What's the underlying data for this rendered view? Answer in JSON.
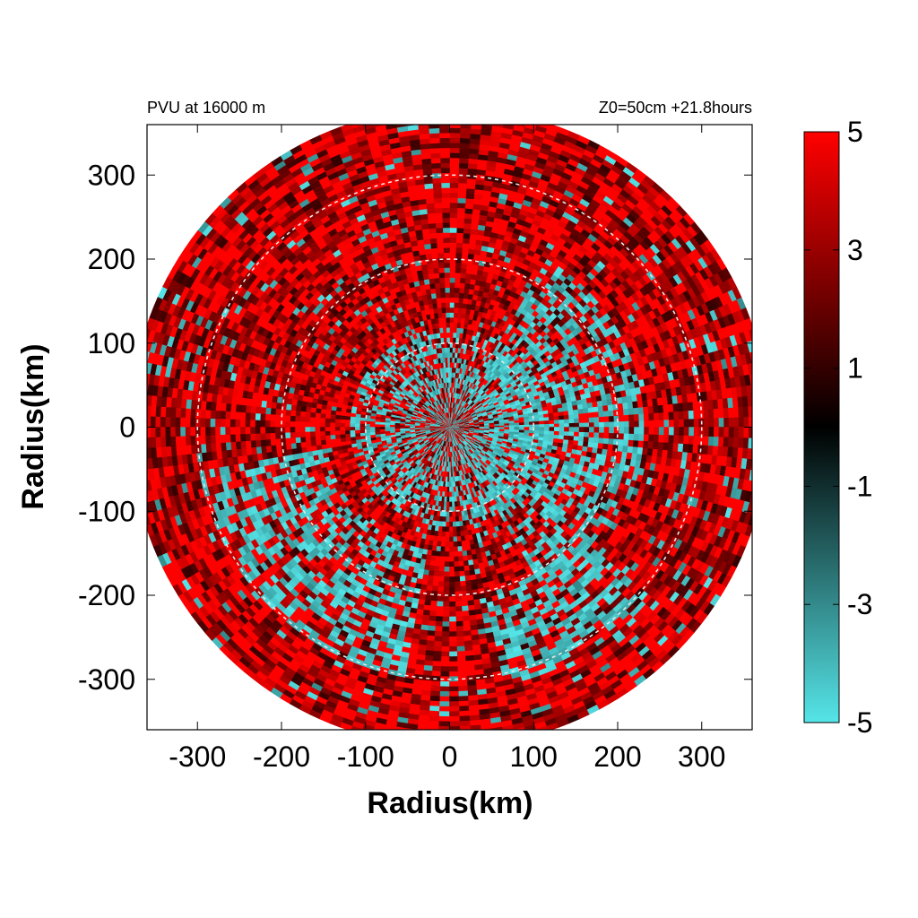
{
  "chart_data": {
    "type": "heatmap",
    "title_left": "PVU at 16000 m",
    "title_right": "Z0=50cm  +21.8hours",
    "xlabel": "Radius(km)",
    "ylabel": "Radius(km)",
    "xlim": [
      -360,
      360
    ],
    "ylim": [
      -360,
      360
    ],
    "xticks": [
      -300,
      -200,
      -100,
      0,
      100,
      200,
      300
    ],
    "yticks": [
      300,
      200,
      100,
      0,
      -100,
      -200,
      -300
    ],
    "reference_circles_km": [
      100,
      200,
      300
    ],
    "domain_radius_km": 380,
    "colorbar": {
      "range": [
        -5,
        5
      ],
      "ticks": [
        5,
        3,
        1,
        -1,
        -3,
        -5
      ],
      "colors": {
        "min": "#55e5e8",
        "mid": "#000000",
        "max": "#ff0000"
      }
    },
    "field_description_values": {
      "background_mean": 4,
      "negative_patches": [
        {
          "radius_km_min": 40,
          "radius_km_max": 230,
          "azimuth_deg_min": -60,
          "azimuth_deg_max": 60,
          "value": -5
        },
        {
          "radius_km_min": 0,
          "radius_km_max": 120,
          "azimuth_deg_min": 0,
          "azimuth_deg_max": 360,
          "value": -5
        },
        {
          "radius_km_min": 150,
          "radius_km_max": 300,
          "azimuth_deg_min": 190,
          "azimuth_deg_max": 260,
          "value": -5
        },
        {
          "radius_km_min": 200,
          "radius_km_max": 320,
          "azimuth_deg_min": 280,
          "azimuth_deg_max": 320,
          "value": -5
        }
      ]
    }
  }
}
